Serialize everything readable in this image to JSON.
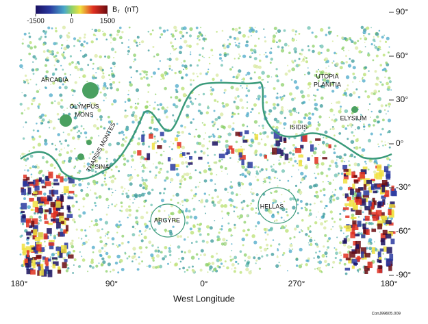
{
  "colorbar": {
    "symbol": "B",
    "subscript": "r",
    "unit": "(nT)",
    "ticks": [
      -1500,
      0,
      1500
    ]
  },
  "y_axis": {
    "ticks": [
      {
        "value": 90,
        "label": "90°"
      },
      {
        "value": 60,
        "label": "60°"
      },
      {
        "value": 30,
        "label": "30°"
      },
      {
        "value": 0,
        "label": "0°"
      },
      {
        "value": -30,
        "label": "-30°"
      },
      {
        "value": -60,
        "label": "-60°"
      },
      {
        "value": -90,
        "label": "-90°"
      }
    ]
  },
  "x_axis": {
    "label": "West Longitude",
    "ticks": [
      "180°",
      "90°",
      "0°",
      "270°",
      "180°"
    ]
  },
  "regions": [
    {
      "lines": [
        "ARCADIA"
      ]
    },
    {
      "lines": [
        "OLYMPUS",
        "MONS"
      ]
    },
    {
      "lines": [
        "THARSIS MONTES"
      ]
    },
    {
      "lines": [
        "SINAI"
      ]
    },
    {
      "lines": [
        "ARGYRE"
      ]
    },
    {
      "lines": [
        "HELLAS"
      ]
    },
    {
      "lines": [
        "ISIDIS"
      ]
    },
    {
      "lines": [
        "UTOPIA",
        "PLANITIA"
      ]
    },
    {
      "lines": [
        "ELYSIUM"
      ]
    }
  ],
  "credit": "ConJ99605.009"
}
